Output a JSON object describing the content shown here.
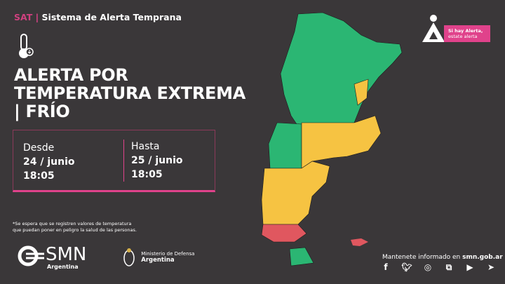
{
  "header": {
    "sat": "SAT",
    "separator": "|",
    "system": "Sistema de Alerta Temprana"
  },
  "title": {
    "line1": "ALERTA POR",
    "line2": "TEMPERATURA EXTREMA",
    "line3": "| FRÍO"
  },
  "period": {
    "from_label": "Desde",
    "from_date": "24 / junio",
    "from_time": "18:05",
    "to_label": "Hasta",
    "to_date": "25 / junio",
    "to_time": "18:05"
  },
  "note": {
    "line1": "*Se espera que se registren valores de temperatura",
    "line2": "que puedan poner en peligro la salud de las personas."
  },
  "logos": {
    "smn": "SMN",
    "smn_sub": "Argentina",
    "mindef_line1": "Ministerio de Defensa",
    "mindef_line2": "Argentina"
  },
  "badge": {
    "line1": "Si hay Alerta,",
    "line2": "estate alerta"
  },
  "footer": {
    "keep_informed": "Mantenete informado en ",
    "site": "smn.gob.ar"
  },
  "social": [
    "facebook-icon",
    "twitter-icon",
    "instagram-icon",
    "igtv-icon",
    "youtube-icon",
    "telegram-icon"
  ],
  "colors": {
    "background": "#3a3739",
    "accent": "#e0428b",
    "no_alert": "#2bb673",
    "yellow": "#f6c342",
    "red": "#e0575f"
  }
}
